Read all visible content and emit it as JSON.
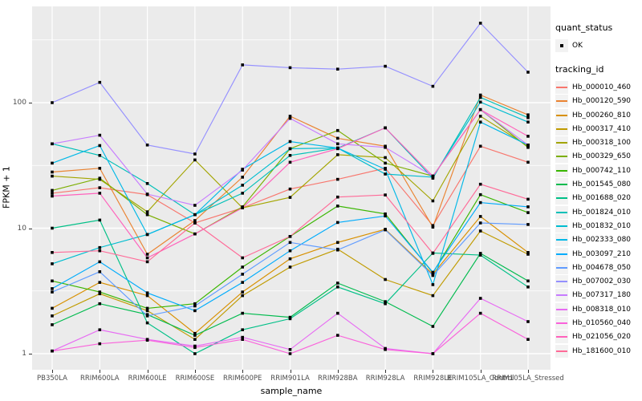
{
  "figure": {
    "panel_bg": "#EBEBEB",
    "grid_color": "#FFFFFF",
    "tick_text_color": "#4D4D4D",
    "point_color": "#000000",
    "legend": {
      "quant_status": {
        "title": "quant_status",
        "items": [
          {
            "label": "OK",
            "symbol": "black-point"
          }
        ]
      },
      "tracking_id": {
        "title": "tracking_id"
      }
    }
  },
  "chart_data": {
    "type": "line",
    "title": "",
    "xlabel": "sample_name",
    "ylabel": "FPKM + 1",
    "yscale": "log10",
    "ylim": [
      1,
      500
    ],
    "yticks": [
      1,
      10,
      100
    ],
    "grid": true,
    "legend_position": "right",
    "marker": "black-square",
    "categories": [
      "PB350LA",
      "RRIM600LA",
      "RRIM600LE",
      "RRIM600SE",
      "RRIM600PE",
      "RRIM901LA",
      "RRIM928BA",
      "RRIM928LA",
      "RRIM928LE",
      "RRIM105LA_Control",
      "RRIM105LA_Stressed"
    ],
    "series": [
      {
        "name": "Hb_000010_460",
        "color": "#F8766D",
        "values": [
          19,
          21,
          18.5,
          11,
          14.5,
          20.5,
          24.5,
          30,
          10.5,
          45,
          33.5
        ]
      },
      {
        "name": "Hb_000120_590",
        "color": "#EA8331",
        "values": [
          28,
          30,
          6.2,
          11.5,
          25.5,
          78,
          52,
          45,
          10.2,
          115,
          80
        ]
      },
      {
        "name": "Hb_000260_810",
        "color": "#D89000",
        "values": [
          2.3,
          3.7,
          2.9,
          1.45,
          3.1,
          5.7,
          7.7,
          9.8,
          4.3,
          12.4,
          6.4
        ]
      },
      {
        "name": "Hb_000317_410",
        "color": "#C09B00",
        "values": [
          2.0,
          3.0,
          2.2,
          1.3,
          2.9,
          4.9,
          6.8,
          3.9,
          2.9,
          9.5,
          6.2
        ]
      },
      {
        "name": "Hb_000318_100",
        "color": "#A3A500",
        "values": [
          26,
          24.5,
          13.5,
          35,
          14.5,
          17.6,
          38.5,
          36.5,
          16.5,
          78,
          45
        ]
      },
      {
        "name": "Hb_000329_650",
        "color": "#7CAE00",
        "values": [
          20,
          25,
          12.8,
          9.0,
          14.8,
          43,
          60,
          33,
          26,
          88,
          44
        ]
      },
      {
        "name": "Hb_000742_110",
        "color": "#39B600",
        "values": [
          3.8,
          3.1,
          2.3,
          2.5,
          4.9,
          8.6,
          15,
          13,
          4.4,
          18.5,
          13.3
        ]
      },
      {
        "name": "Hb_001545_080",
        "color": "#00BB4E",
        "values": [
          1.7,
          2.5,
          2.05,
          1.4,
          2.1,
          1.95,
          3.65,
          2.6,
          1.65,
          6.3,
          3.8
        ]
      },
      {
        "name": "Hb_001688_020",
        "color": "#00C087",
        "values": [
          10,
          11.6,
          1.76,
          1.0,
          1.55,
          1.9,
          3.4,
          2.5,
          6.35,
          6.1,
          3.4
        ]
      },
      {
        "name": "Hb_001824_010",
        "color": "#00C0B8",
        "values": [
          47,
          38,
          22.7,
          12.8,
          19,
          38,
          43.5,
          63,
          25,
          110,
          76
        ]
      },
      {
        "name": "Hb_001832_010",
        "color": "#00BDD0",
        "values": [
          5.2,
          7.0,
          8.9,
          12.8,
          22,
          43,
          43.5,
          27,
          25.5,
          101,
          70
        ]
      },
      {
        "name": "Hb_002333_080",
        "color": "#00B8E7",
        "values": [
          33,
          45.5,
          8.9,
          12.8,
          29.5,
          49,
          43.5,
          29.5,
          3.55,
          70,
          46
        ]
      },
      {
        "name": "Hb_003097_210",
        "color": "#00ACFC",
        "values": [
          3.3,
          5.4,
          3.05,
          2.2,
          3.7,
          6.6,
          11.1,
          12.5,
          4.45,
          16,
          14.8
        ]
      },
      {
        "name": "Hb_004678_050",
        "color": "#619CFF",
        "values": [
          3.1,
          4.5,
          2.0,
          2.4,
          4.3,
          7.7,
          6.7,
          9.7,
          4.2,
          11,
          10.7
        ]
      },
      {
        "name": "Hb_007002_030",
        "color": "#9590FF",
        "values": [
          100,
          145,
          46,
          39,
          200,
          190,
          185,
          195,
          135,
          430,
          175
        ]
      },
      {
        "name": "Hb_007317_180",
        "color": "#C77CFF",
        "values": [
          47,
          55,
          18.7,
          15.2,
          29,
          75,
          47,
          44,
          26,
          88,
          46
        ]
      },
      {
        "name": "Hb_008318_010",
        "color": "#E76BF3",
        "values": [
          1.05,
          1.55,
          1.3,
          1.15,
          1.35,
          1.08,
          2.1,
          1.1,
          1.0,
          2.76,
          1.8
        ]
      },
      {
        "name": "Hb_010560_040",
        "color": "#FA62DB",
        "values": [
          1.05,
          1.2,
          1.28,
          1.12,
          1.3,
          1.0,
          1.4,
          1.08,
          1.0,
          2.1,
          1.3
        ]
      },
      {
        "name": "Hb_021056_020",
        "color": "#FF62BC",
        "values": [
          18,
          19,
          5.8,
          9.0,
          14.5,
          33.5,
          43,
          63,
          26,
          88,
          54
        ]
      },
      {
        "name": "Hb_181600_010",
        "color": "#FF6A98",
        "values": [
          6.4,
          6.6,
          5.4,
          11,
          5.8,
          8.6,
          17.7,
          18.4,
          6.3,
          22.4,
          17
        ]
      }
    ]
  }
}
